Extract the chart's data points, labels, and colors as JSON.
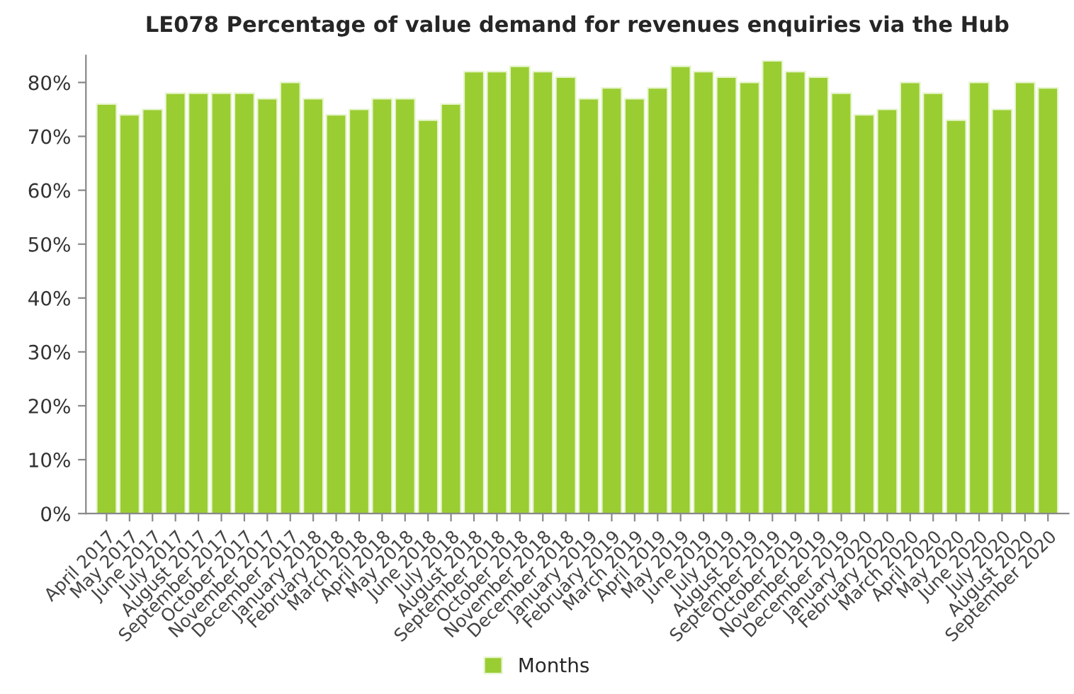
{
  "chart_data": {
    "type": "bar",
    "title": "LE078 Percentage of value demand for revenues enquiries via the Hub",
    "categories": [
      "April 2017",
      "May 2017",
      "June 2017",
      "July 2017",
      "August 2017",
      "September 2017",
      "October 2017",
      "November 2017",
      "December 2017",
      "January 2018",
      "February 2018",
      "March 2018",
      "April 2018",
      "May 2018",
      "June 2018",
      "July 2018",
      "August 2018",
      "September 2018",
      "October 2018",
      "November 2018",
      "December 2018",
      "January 2019",
      "February 2019",
      "March 2019",
      "April 2019",
      "May 2019",
      "June 2019",
      "July 2019",
      "August 2019",
      "September 2019",
      "October 2019",
      "November 2019",
      "December 2019",
      "January 2020",
      "February 2020",
      "March 2020",
      "April 2020",
      "May 2020",
      "June 2020",
      "July 2020",
      "August 2020",
      "September 2020"
    ],
    "series": [
      {
        "name": "Months",
        "color": "#9acd32",
        "values": [
          76,
          74,
          75,
          78,
          78,
          78,
          78,
          77,
          80,
          77,
          74,
          75,
          77,
          77,
          73,
          76,
          82,
          82,
          83,
          82,
          81,
          77,
          79,
          77,
          79,
          83,
          82,
          81,
          80,
          84,
          82,
          81,
          78,
          74,
          75,
          80,
          78,
          73,
          80,
          75,
          80,
          79
        ]
      }
    ],
    "ylim": [
      0,
      85
    ],
    "yticks": [
      {
        "value": 0,
        "label": "0%"
      },
      {
        "value": 10,
        "label": "10%"
      },
      {
        "value": 20,
        "label": "20%"
      },
      {
        "value": 30,
        "label": "30%"
      },
      {
        "value": 40,
        "label": "40%"
      },
      {
        "value": 50,
        "label": "50%"
      },
      {
        "value": 60,
        "label": "60%"
      },
      {
        "value": 70,
        "label": "70%"
      },
      {
        "value": 80,
        "label": "80%"
      }
    ],
    "grid": false,
    "legend": "bottom"
  }
}
